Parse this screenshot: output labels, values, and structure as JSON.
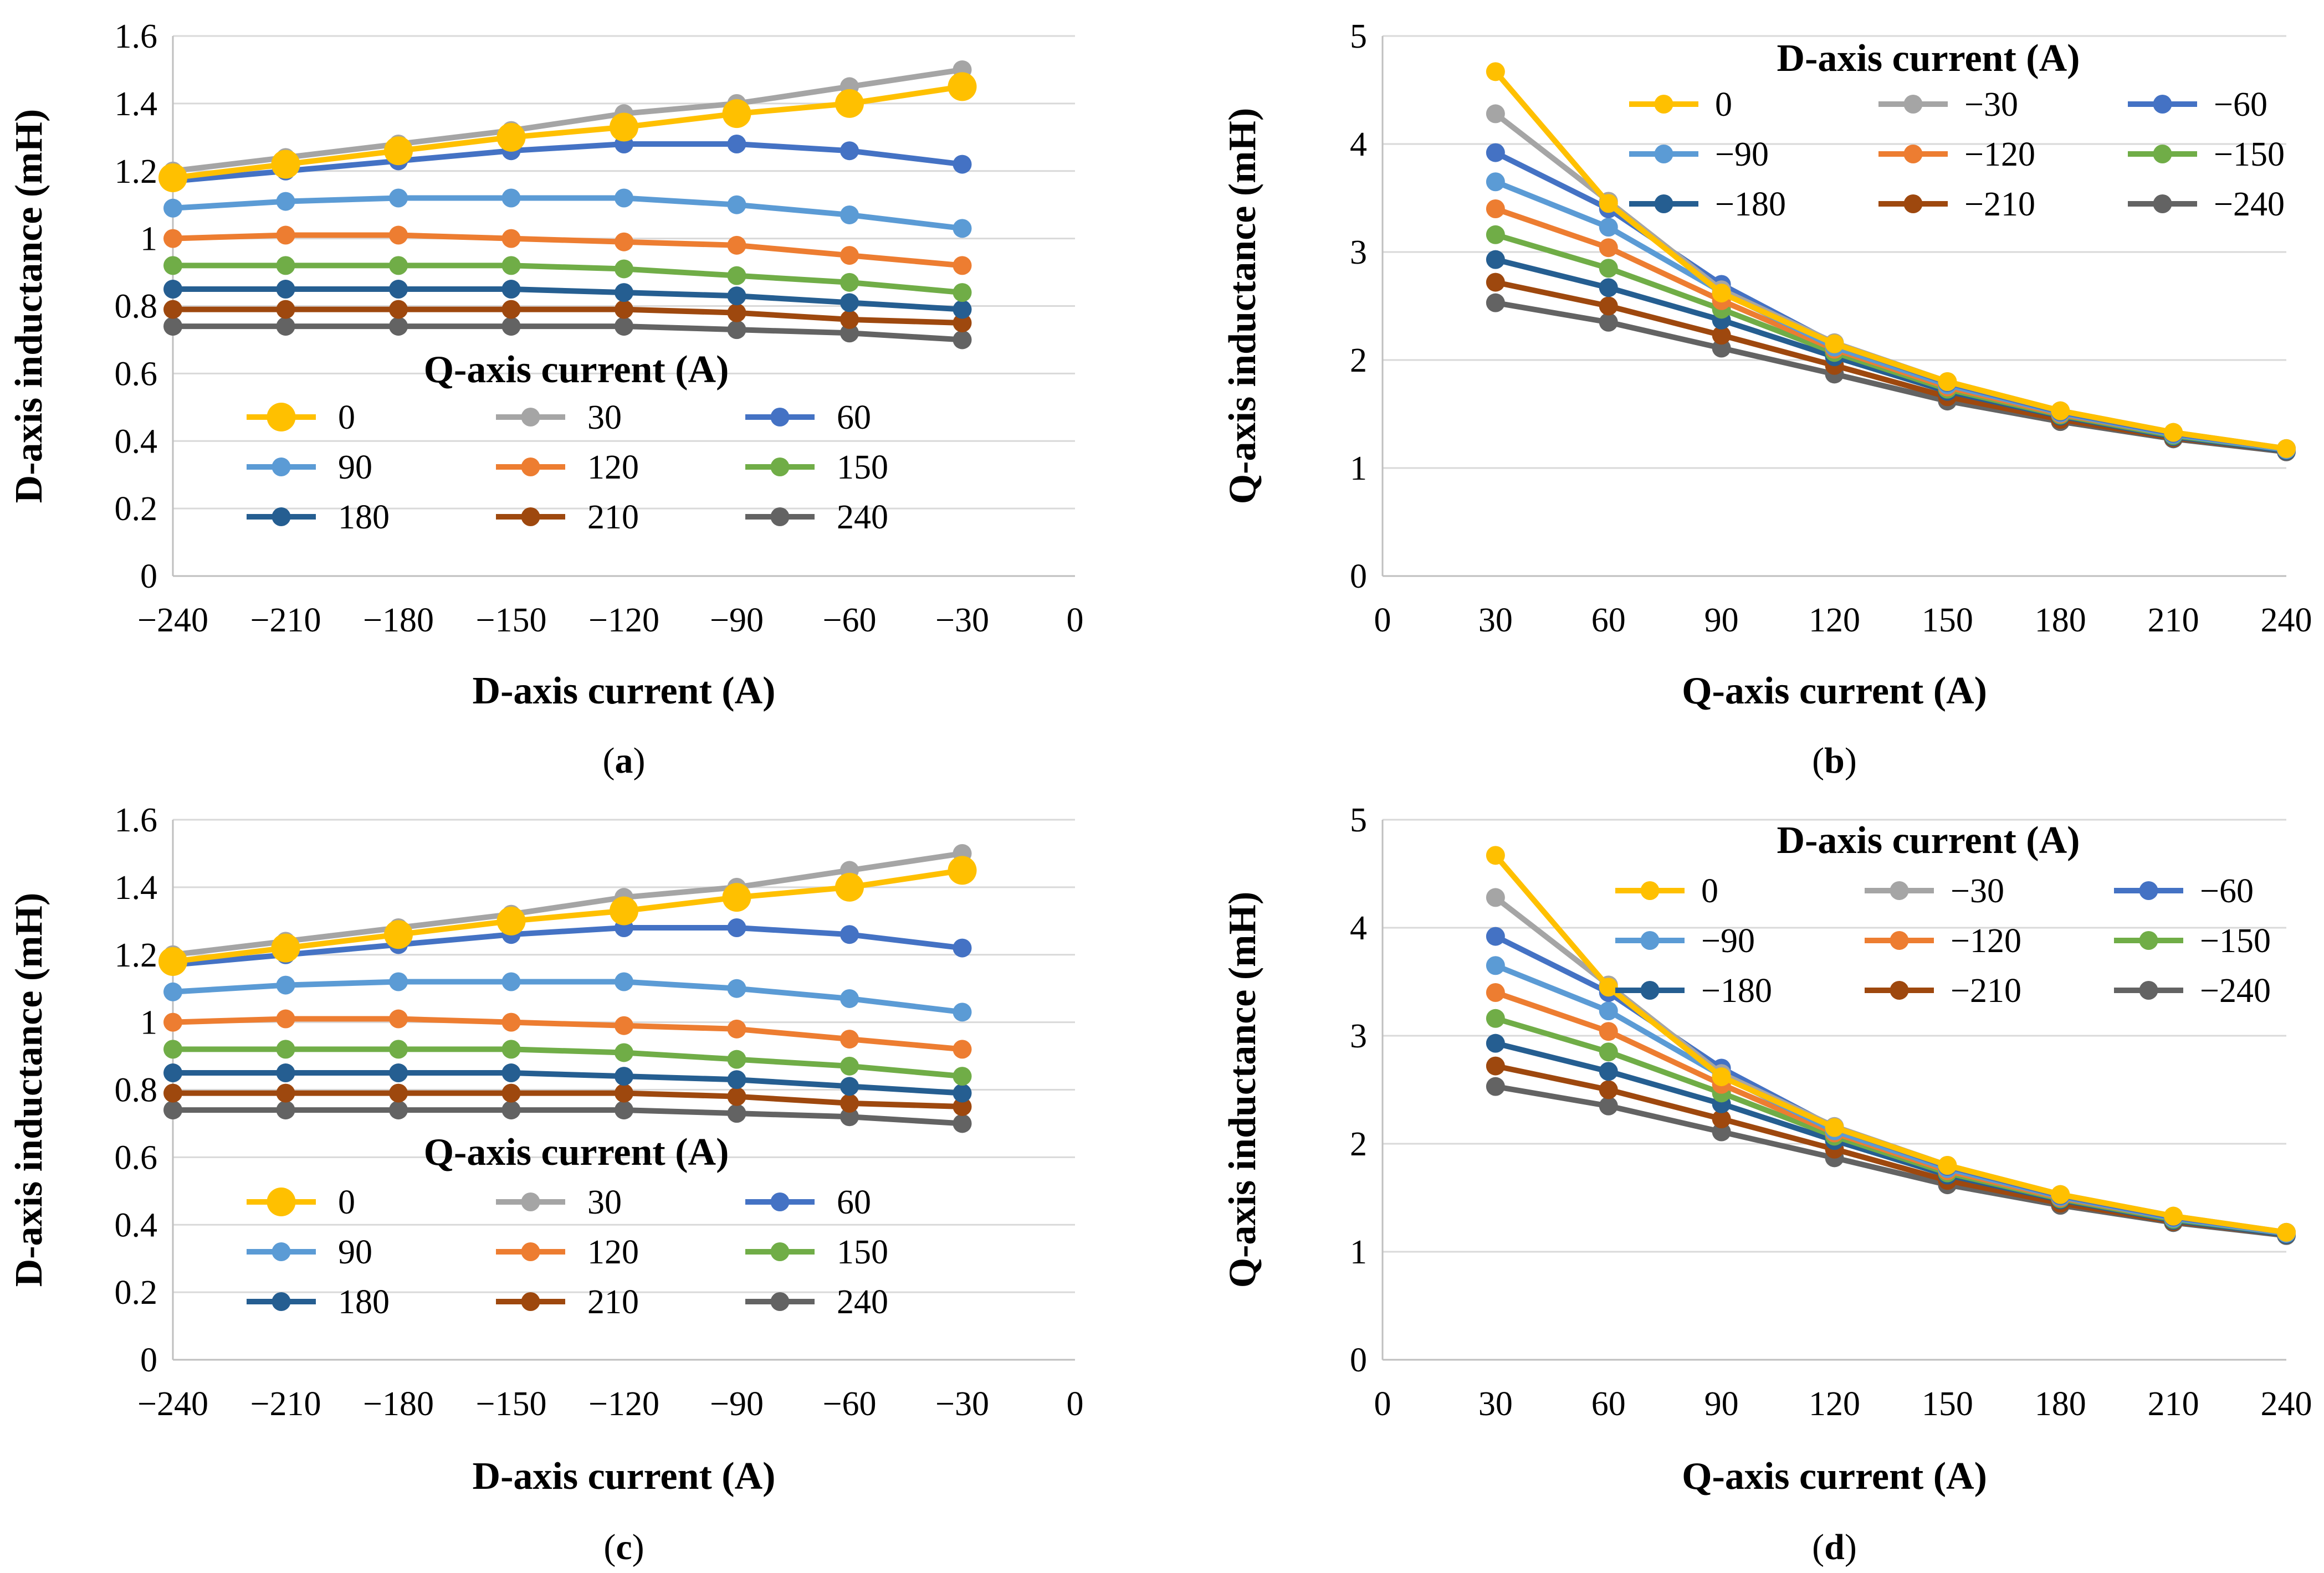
{
  "colors": [
    "#FFC000",
    "#A5A5A5",
    "#4472C4",
    "#5B9BD5",
    "#ED7D31",
    "#70AD47",
    "#255E91",
    "#9E480E",
    "#636363"
  ],
  "chart_data": [
    {
      "type": "line",
      "panel_label": "a",
      "xlabel": "D-axis current (A)",
      "ylabel": "D-axis inductance (mH)",
      "xlim": [
        -240,
        0
      ],
      "ylim": [
        0,
        1.6
      ],
      "xticks": [
        -240,
        -210,
        -180,
        -150,
        -120,
        -90,
        -60,
        -30,
        0
      ],
      "xtick_labels": [
        "−240",
        "−210",
        "−180",
        "−150",
        "−120",
        "−90",
        "−60",
        "−30",
        "0"
      ],
      "yticks": [
        0,
        0.2,
        0.4,
        0.6,
        0.8,
        1,
        1.2,
        1.4,
        1.6
      ],
      "ytick_labels": [
        "0",
        "0.2",
        "0.4",
        "0.6",
        "0.8",
        "1",
        "1.2",
        "1.4",
        "1.6"
      ],
      "grid": "horizontal",
      "legend_title": "Q-axis current (A)",
      "legend_placement": "lower-center",
      "x": [
        -240,
        -210,
        -180,
        -150,
        -120,
        -90,
        -60,
        -30
      ],
      "series": [
        {
          "name": "0",
          "values": [
            1.18,
            1.22,
            1.26,
            1.3,
            1.33,
            1.37,
            1.4,
            1.45
          ]
        },
        {
          "name": "30",
          "values": [
            1.2,
            1.24,
            1.28,
            1.32,
            1.37,
            1.4,
            1.45,
            1.5
          ]
        },
        {
          "name": "60",
          "values": [
            1.17,
            1.2,
            1.23,
            1.26,
            1.28,
            1.28,
            1.26,
            1.22
          ]
        },
        {
          "name": "90",
          "values": [
            1.09,
            1.11,
            1.12,
            1.12,
            1.12,
            1.1,
            1.07,
            1.03
          ]
        },
        {
          "name": "120",
          "values": [
            1.0,
            1.01,
            1.01,
            1.0,
            0.99,
            0.98,
            0.95,
            0.92
          ]
        },
        {
          "name": "150",
          "values": [
            0.92,
            0.92,
            0.92,
            0.92,
            0.91,
            0.89,
            0.87,
            0.84
          ]
        },
        {
          "name": "180",
          "values": [
            0.85,
            0.85,
            0.85,
            0.85,
            0.84,
            0.83,
            0.81,
            0.79
          ]
        },
        {
          "name": "210",
          "values": [
            0.79,
            0.79,
            0.79,
            0.79,
            0.79,
            0.78,
            0.76,
            0.75
          ]
        },
        {
          "name": "240",
          "values": [
            0.74,
            0.74,
            0.74,
            0.74,
            0.74,
            0.73,
            0.72,
            0.7
          ]
        }
      ]
    },
    {
      "type": "line",
      "panel_label": "b",
      "xlabel": "Q-axis current (A)",
      "ylabel": "Q-axis inductance (mH)",
      "xlim": [
        0,
        240
      ],
      "ylim": [
        0,
        5
      ],
      "xticks": [
        0,
        30,
        60,
        90,
        120,
        150,
        180,
        210,
        240
      ],
      "xtick_labels": [
        "0",
        "30",
        "60",
        "90",
        "120",
        "150",
        "180",
        "210",
        "240"
      ],
      "yticks": [
        0,
        1,
        2,
        3,
        4,
        5
      ],
      "ytick_labels": [
        "0",
        "1",
        "2",
        "3",
        "4",
        "5"
      ],
      "grid": "horizontal",
      "legend_title": "D-axis current (A)",
      "legend_placement": "top-right",
      "x": [
        30,
        60,
        90,
        120,
        150,
        180,
        210,
        240
      ],
      "series": [
        {
          "name": "0",
          "values": [
            4.67,
            3.45,
            2.62,
            2.15,
            1.8,
            1.53,
            1.33,
            1.18
          ]
        },
        {
          "name": "−30",
          "values": [
            4.28,
            3.47,
            2.65,
            2.16,
            1.8,
            1.53,
            1.33,
            1.18
          ]
        },
        {
          "name": "−60",
          "values": [
            3.92,
            3.4,
            2.7,
            2.15,
            1.79,
            1.52,
            1.32,
            1.18
          ]
        },
        {
          "name": "−90",
          "values": [
            3.65,
            3.23,
            2.63,
            2.12,
            1.77,
            1.51,
            1.31,
            1.17
          ]
        },
        {
          "name": "−120",
          "values": [
            3.4,
            3.04,
            2.55,
            2.1,
            1.75,
            1.5,
            1.31,
            1.17
          ]
        },
        {
          "name": "−150",
          "values": [
            3.16,
            2.85,
            2.47,
            2.07,
            1.73,
            1.49,
            1.3,
            1.17
          ]
        },
        {
          "name": "−180",
          "values": [
            2.93,
            2.67,
            2.37,
            2.03,
            1.71,
            1.48,
            1.29,
            1.16
          ]
        },
        {
          "name": "−210",
          "values": [
            2.72,
            2.5,
            2.23,
            1.95,
            1.66,
            1.45,
            1.28,
            1.16
          ]
        },
        {
          "name": "−240",
          "values": [
            2.53,
            2.35,
            2.11,
            1.87,
            1.62,
            1.43,
            1.27,
            1.15
          ]
        }
      ]
    },
    {
      "type": "line",
      "panel_label": "c",
      "xlabel": "D-axis current (A)",
      "ylabel": "D-axis inductance (mH)",
      "xlim": [
        -240,
        0
      ],
      "ylim": [
        0,
        1.6
      ],
      "xticks": [
        -240,
        -210,
        -180,
        -150,
        -120,
        -90,
        -60,
        -30,
        0
      ],
      "xtick_labels": [
        "−240",
        "−210",
        "−180",
        "−150",
        "−120",
        "−90",
        "−60",
        "−30",
        "0"
      ],
      "yticks": [
        0,
        0.2,
        0.4,
        0.6,
        0.8,
        1,
        1.2,
        1.4,
        1.6
      ],
      "ytick_labels": [
        "0",
        "0.2",
        "0.4",
        "0.6",
        "0.8",
        "1",
        "1.2",
        "1.4",
        "1.6"
      ],
      "grid": "horizontal",
      "legend_title": "Q-axis current (A)",
      "legend_placement": "lower-center",
      "x": [
        -240,
        -210,
        -180,
        -150,
        -120,
        -90,
        -60,
        -30
      ],
      "series": [
        {
          "name": "0",
          "values": [
            1.18,
            1.22,
            1.26,
            1.3,
            1.33,
            1.37,
            1.4,
            1.45
          ]
        },
        {
          "name": "30",
          "values": [
            1.2,
            1.24,
            1.28,
            1.32,
            1.37,
            1.4,
            1.45,
            1.5
          ]
        },
        {
          "name": "60",
          "values": [
            1.17,
            1.2,
            1.23,
            1.26,
            1.28,
            1.28,
            1.26,
            1.22
          ]
        },
        {
          "name": "90",
          "values": [
            1.09,
            1.11,
            1.12,
            1.12,
            1.12,
            1.1,
            1.07,
            1.03
          ]
        },
        {
          "name": "120",
          "values": [
            1.0,
            1.01,
            1.01,
            1.0,
            0.99,
            0.98,
            0.95,
            0.92
          ]
        },
        {
          "name": "150",
          "values": [
            0.92,
            0.92,
            0.92,
            0.92,
            0.91,
            0.89,
            0.87,
            0.84
          ]
        },
        {
          "name": "180",
          "values": [
            0.85,
            0.85,
            0.85,
            0.85,
            0.84,
            0.83,
            0.81,
            0.79
          ]
        },
        {
          "name": "210",
          "values": [
            0.79,
            0.79,
            0.79,
            0.79,
            0.79,
            0.78,
            0.76,
            0.75
          ]
        },
        {
          "name": "240",
          "values": [
            0.74,
            0.74,
            0.74,
            0.74,
            0.74,
            0.73,
            0.72,
            0.7
          ]
        }
      ]
    },
    {
      "type": "line",
      "panel_label": "d",
      "xlabel": "Q-axis current (A)",
      "ylabel": "Q-axis inductance (mH)",
      "xlim": [
        0,
        240
      ],
      "ylim": [
        0,
        5
      ],
      "xticks": [
        0,
        30,
        60,
        90,
        120,
        150,
        180,
        210,
        240
      ],
      "xtick_labels": [
        "0",
        "30",
        "60",
        "90",
        "120",
        "150",
        "180",
        "210",
        "240"
      ],
      "yticks": [
        0,
        1,
        2,
        3,
        4,
        5
      ],
      "ytick_labels": [
        "0",
        "1",
        "2",
        "3",
        "4",
        "5"
      ],
      "grid": "horizontal",
      "legend_title": "D-axis current (A)",
      "legend_placement": "top-right",
      "x": [
        30,
        60,
        90,
        120,
        150,
        180,
        210,
        240
      ],
      "series": [
        {
          "name": "0",
          "values": [
            4.67,
            3.45,
            2.62,
            2.15,
            1.8,
            1.53,
            1.33,
            1.18
          ]
        },
        {
          "name": "−30",
          "values": [
            4.28,
            3.47,
            2.65,
            2.16,
            1.8,
            1.53,
            1.33,
            1.18
          ]
        },
        {
          "name": "−60",
          "values": [
            3.92,
            3.4,
            2.7,
            2.15,
            1.79,
            1.52,
            1.32,
            1.18
          ]
        },
        {
          "name": "−90",
          "values": [
            3.65,
            3.23,
            2.63,
            2.12,
            1.77,
            1.51,
            1.31,
            1.17
          ]
        },
        {
          "name": "−120",
          "values": [
            3.4,
            3.04,
            2.55,
            2.1,
            1.75,
            1.5,
            1.31,
            1.17
          ]
        },
        {
          "name": "−150",
          "values": [
            3.16,
            2.85,
            2.47,
            2.07,
            1.73,
            1.49,
            1.3,
            1.17
          ]
        },
        {
          "name": "−180",
          "values": [
            2.93,
            2.67,
            2.37,
            2.03,
            1.71,
            1.48,
            1.29,
            1.16
          ]
        },
        {
          "name": "−210",
          "values": [
            2.72,
            2.5,
            2.23,
            1.95,
            1.66,
            1.45,
            1.28,
            1.16
          ]
        },
        {
          "name": "−240",
          "values": [
            2.53,
            2.35,
            2.11,
            1.87,
            1.62,
            1.43,
            1.27,
            1.15
          ]
        }
      ]
    }
  ]
}
